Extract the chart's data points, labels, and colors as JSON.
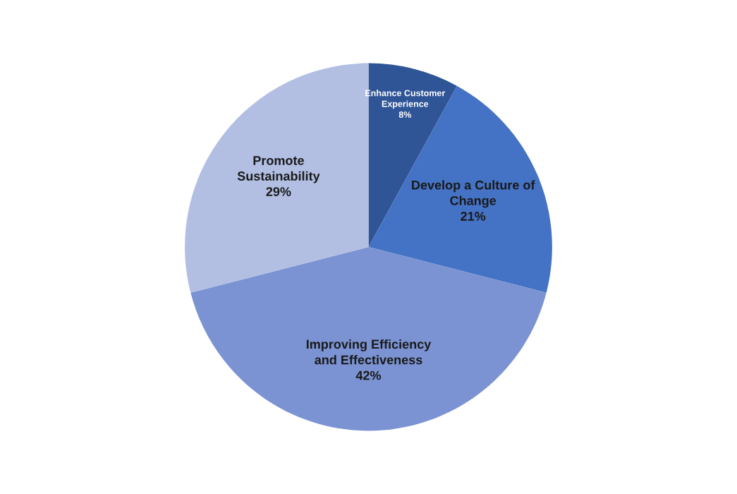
{
  "chart_data": {
    "type": "pie",
    "categories": [
      "Enhance Customer Experience",
      "Develop a Culture of Change",
      "Improving Efficiency and Effectiveness",
      "Promote Sustainability"
    ],
    "values": [
      8,
      21,
      42,
      29
    ],
    "colors": [
      "#2f5597",
      "#4472c4",
      "#7b93d2",
      "#b2bfe3"
    ],
    "value_labels": [
      "8%",
      "21%",
      "42%",
      "29%"
    ],
    "legend": false
  }
}
